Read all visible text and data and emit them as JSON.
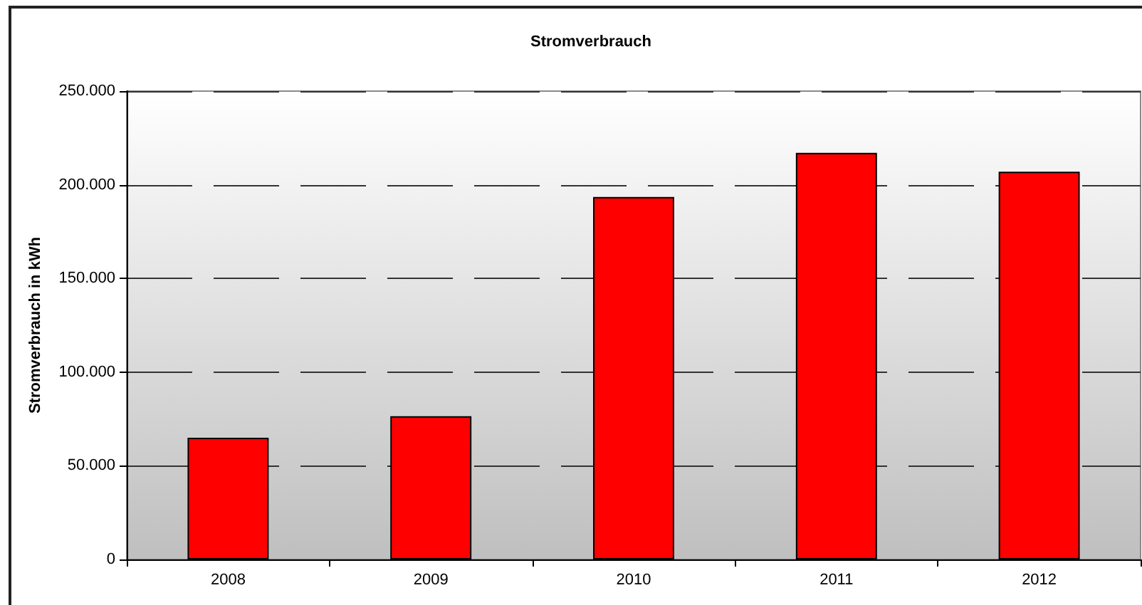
{
  "chart_data": {
    "type": "bar",
    "title": "Stromverbrauch",
    "ylabel": "Stromverbrauch in kWh",
    "categories": [
      "2008",
      "2009",
      "2010",
      "2011",
      "2012"
    ],
    "values": [
      65000,
      76500,
      193500,
      217000,
      207000
    ],
    "color": "#ff0000",
    "ylim": [
      0,
      250000
    ],
    "yticks": [
      0,
      {
        "value": 50000,
        "label": "50.000"
      },
      {
        "value": 100000,
        "label": "100.000"
      },
      {
        "value": 150000,
        "label": "150.000"
      },
      {
        "value": 200000,
        "label": "200.000"
      },
      {
        "value": 250000,
        "label": "250.000"
      }
    ],
    "grid": "y"
  }
}
